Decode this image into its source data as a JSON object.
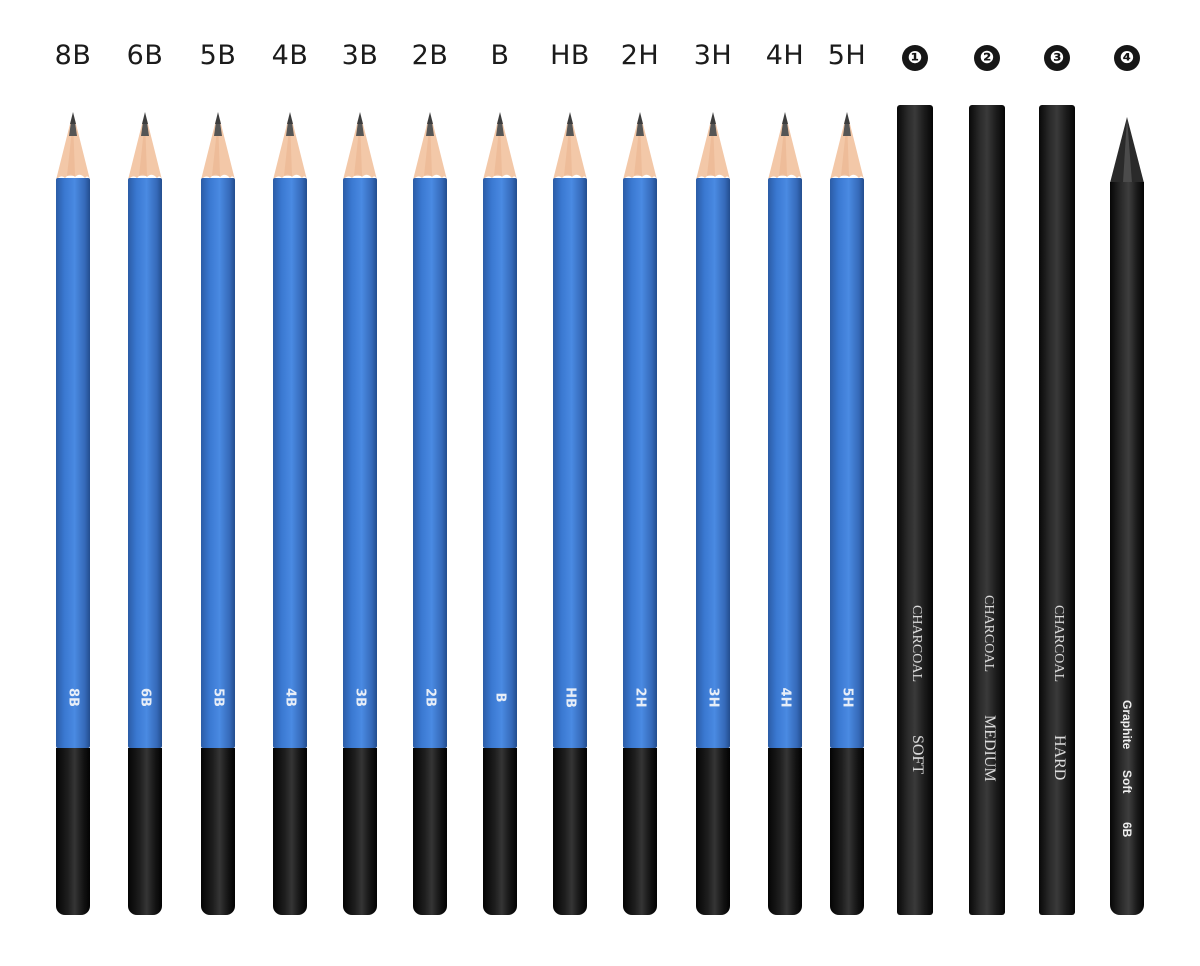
{
  "pencils": [
    {
      "grade": "8B",
      "stamp": "8B"
    },
    {
      "grade": "6B",
      "stamp": "6B"
    },
    {
      "grade": "5B",
      "stamp": "5B"
    },
    {
      "grade": "4B",
      "stamp": "4B"
    },
    {
      "grade": "3B",
      "stamp": "3B"
    },
    {
      "grade": "2B",
      "stamp": "2B"
    },
    {
      "grade": "B",
      "stamp": "B"
    },
    {
      "grade": "HB",
      "stamp": "HB"
    },
    {
      "grade": "2H",
      "stamp": "2H"
    },
    {
      "grade": "3H",
      "stamp": "3H"
    },
    {
      "grade": "4H",
      "stamp": "4H"
    },
    {
      "grade": "5H",
      "stamp": "5H"
    }
  ],
  "sticks": [
    {
      "number": "❶",
      "line1": "CHARCOAL",
      "line2": "SOFT"
    },
    {
      "number": "❷",
      "line1": "CHARCOAL",
      "line2": "MEDIUM"
    },
    {
      "number": "❸",
      "line1": "CHARCOAL",
      "line2": "HARD"
    }
  ],
  "graphite": {
    "number": "❹",
    "brand": "Graphite",
    "type": "Soft",
    "grade": "6B"
  },
  "colors": {
    "barrel_blue": "#3a78d1",
    "cap_black": "#141414",
    "wood": "#f2c4a4",
    "lead": "#4a4a4a"
  }
}
